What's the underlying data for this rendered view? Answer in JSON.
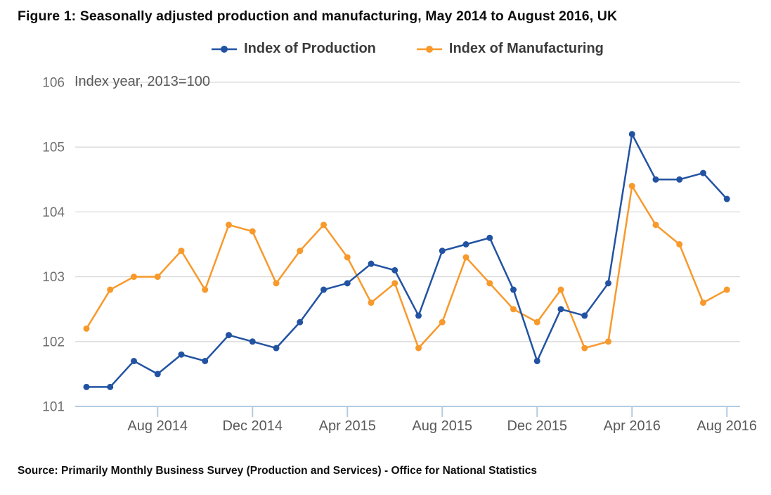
{
  "ui": {
    "title": "Figure 1: Seasonally adjusted production and manufacturing, May 2014 to August 2016, UK",
    "source": "Source: Primarily Monthly Business Survey (Production and Services) - Office for National Statistics"
  },
  "chart_data": {
    "type": "line",
    "title": "Figure 1: Seasonally adjusted production and manufacturing, May 2014 to August 2016, UK",
    "subtitle": "Index year, 2013=100",
    "x_categories": [
      "May 2014",
      "Jun 2014",
      "Jul 2014",
      "Aug 2014",
      "Sep 2014",
      "Oct 2014",
      "Nov 2014",
      "Dec 2014",
      "Jan 2015",
      "Feb 2015",
      "Mar 2015",
      "Apr 2015",
      "May 2015",
      "Jun 2015",
      "Jul 2015",
      "Aug 2015",
      "Sep 2015",
      "Oct 2015",
      "Nov 2015",
      "Dec 2015",
      "Jan 2016",
      "Feb 2016",
      "Mar 2016",
      "Apr 2016",
      "May 2016",
      "Jun 2016",
      "Jul 2016",
      "Aug 2016"
    ],
    "x_tick_labels": [
      "Aug 2014",
      "Dec 2014",
      "Apr 2015",
      "Aug 2015",
      "Dec 2015",
      "Apr 2016",
      "Aug 2016"
    ],
    "x_tick_indices": [
      3,
      7,
      11,
      15,
      19,
      23,
      27
    ],
    "y_ticks": [
      101,
      102,
      103,
      104,
      105,
      106
    ],
    "ylim": [
      101,
      106
    ],
    "grid": "horizontal",
    "legend_position": "top",
    "series": [
      {
        "name": "Index of Production",
        "slug": "production",
        "color": "#2253a2",
        "values": [
          101.3,
          101.3,
          101.7,
          101.5,
          101.8,
          101.7,
          102.1,
          102.0,
          101.9,
          102.3,
          102.8,
          102.9,
          103.2,
          103.1,
          102.4,
          103.4,
          103.5,
          103.6,
          102.8,
          101.7,
          102.5,
          102.4,
          102.9,
          105.2,
          104.5,
          104.5,
          104.6,
          104.2
        ]
      },
      {
        "name": "Index of Manufacturing",
        "slug": "manufacturing",
        "color": "#f8992b",
        "values": [
          102.2,
          102.8,
          103.0,
          103.0,
          103.4,
          102.8,
          103.8,
          103.7,
          102.9,
          103.4,
          103.8,
          103.3,
          102.6,
          102.9,
          101.9,
          102.3,
          103.3,
          102.9,
          102.5,
          102.3,
          102.8,
          101.9,
          102.0,
          104.4,
          103.8,
          103.5,
          102.6,
          102.8
        ]
      }
    ],
    "colors": {
      "grid_line": "#d9d9d9",
      "axis_line": "#b5cbe2",
      "y_tick_label": "#6e6e6e",
      "x_tick_label": "#595959",
      "subtitle_text": "#595959",
      "title_text": "#0d0d0d"
    }
  }
}
